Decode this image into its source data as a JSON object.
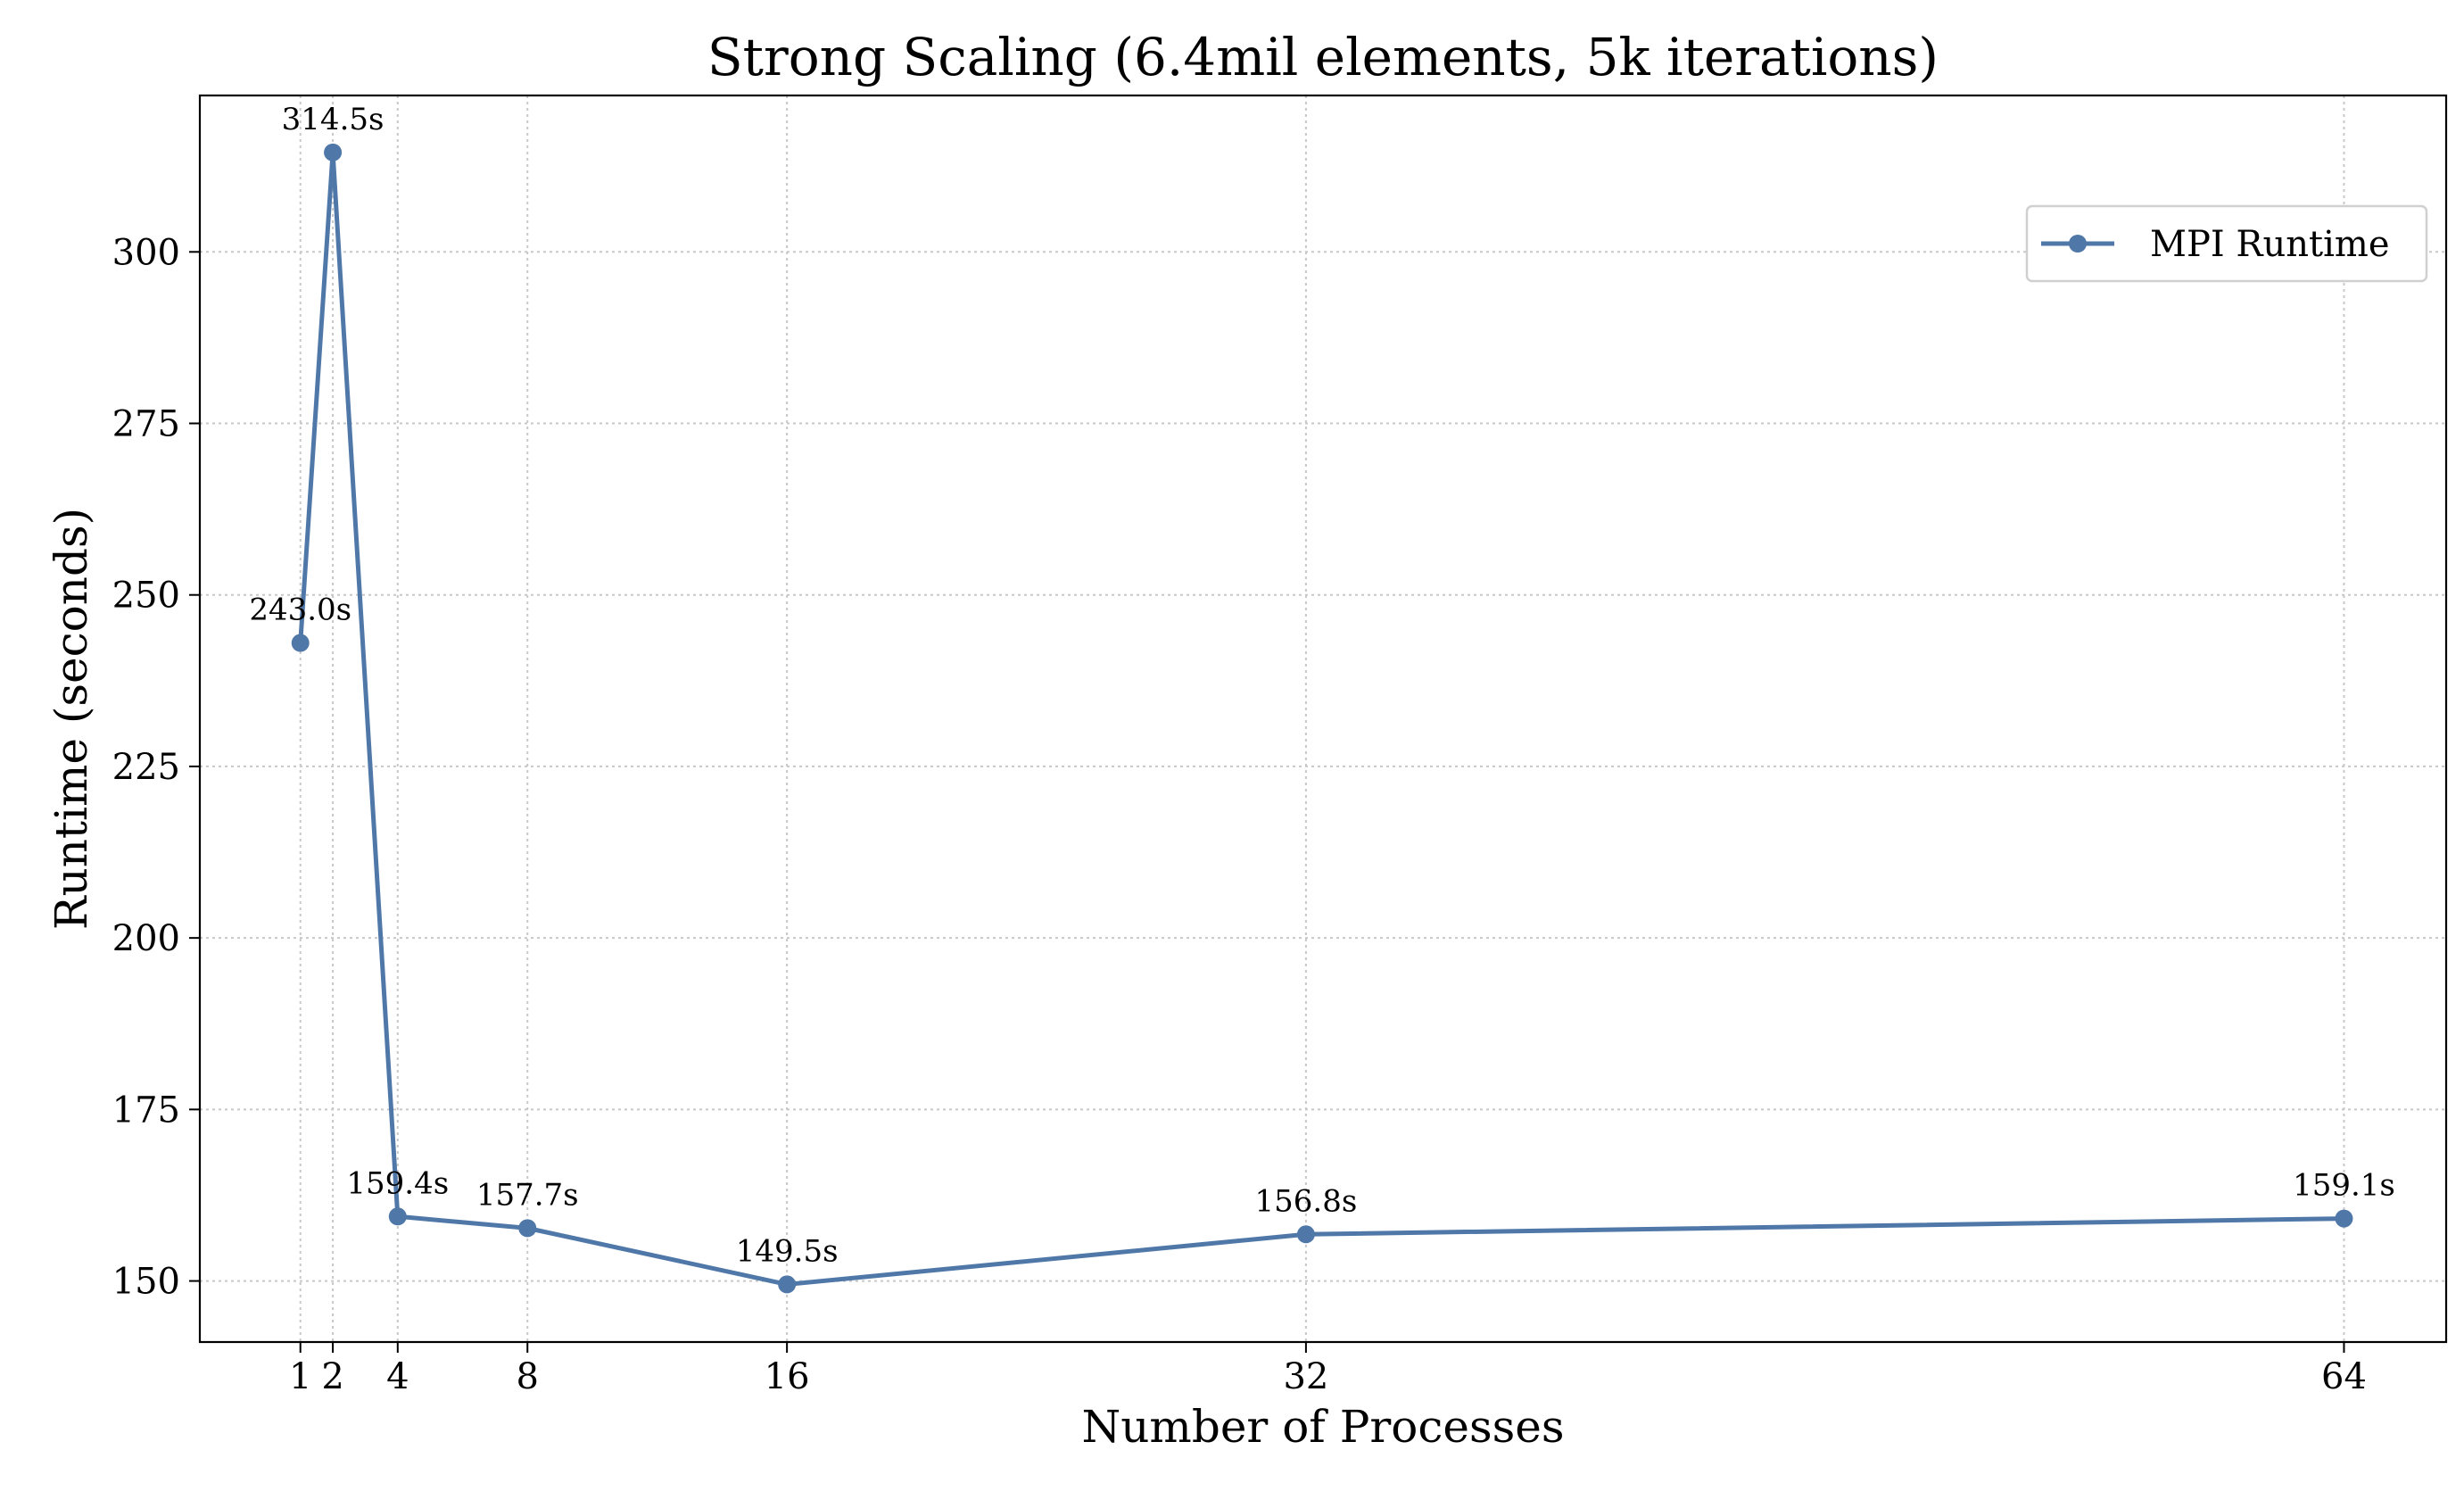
{
  "colors": {
    "series": "#4f78a8",
    "axis": "#000000",
    "grid": "#c8c8c8",
    "legend_border": "#d0d0d0",
    "background": "#ffffff"
  },
  "chart_data": {
    "type": "line",
    "title": "Strong Scaling (6.4mil elements, 5k iterations)",
    "xlabel": "Number of Processes",
    "ylabel": "Runtime (seconds)",
    "x": [
      1,
      2,
      4,
      8,
      16,
      32,
      64
    ],
    "x_ticks": [
      1,
      2,
      4,
      8,
      16,
      32,
      64
    ],
    "y_ticks": [
      150,
      175,
      200,
      225,
      250,
      275,
      300
    ],
    "xlim": [
      -2.1,
      67.15
    ],
    "ylim": [
      141.1,
      322.8
    ],
    "grid": true,
    "legend_position": "upper-right",
    "series": [
      {
        "name": "MPI Runtime",
        "marker": "circle",
        "values": [
          243.0,
          314.5,
          159.4,
          157.7,
          149.5,
          156.8,
          159.1
        ],
        "labels": [
          "243.0s",
          "314.5s",
          "159.4s",
          "157.7s",
          "149.5s",
          "156.8s",
          "159.1s"
        ]
      }
    ]
  }
}
